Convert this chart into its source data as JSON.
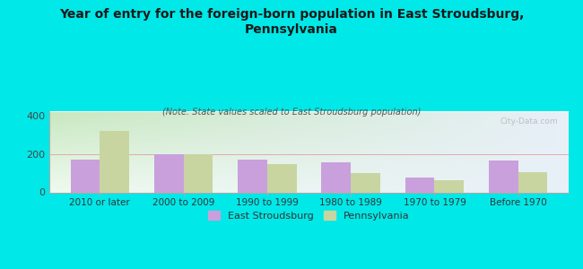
{
  "title": "Year of entry for the foreign-born population in East Stroudsburg,\nPennsylvania",
  "subtitle": "(Note: State values scaled to East Stroudsburg population)",
  "categories": [
    "2010 or later",
    "2000 to 2009",
    "1990 to 1999",
    "1980 to 1989",
    "1970 to 1979",
    "Before 1970"
  ],
  "east_stroudsburg": [
    170,
    200,
    170,
    155,
    75,
    165
  ],
  "pennsylvania": [
    320,
    200,
    148,
    100,
    62,
    103
  ],
  "color_es": "#c9a0dc",
  "color_pa": "#c8d5a0",
  "background_color": "#00e8e8",
  "grad_top": "#c8e8c0",
  "grad_bottom": "#f0faf0",
  "grad_right": "#e8f0f8",
  "ylim": [
    0,
    420
  ],
  "yticks": [
    0,
    200,
    400
  ],
  "watermark": "City-Data.com",
  "legend_es": "East Stroudsburg",
  "legend_pa": "Pennsylvania",
  "bar_width": 0.35,
  "title_fontsize": 10,
  "subtitle_fontsize": 7,
  "tick_fontsize": 7.5
}
